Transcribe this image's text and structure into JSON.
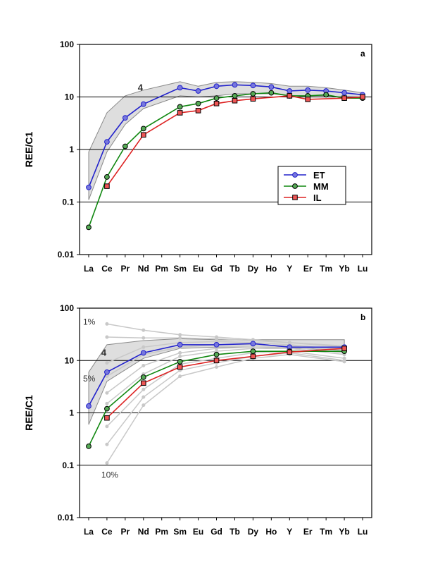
{
  "chart_data": [
    {
      "type": "line",
      "panel_label": "a",
      "ylabel": "REE/C1",
      "yscale": "log",
      "ylim": [
        0.01,
        100
      ],
      "yticks": [
        "0.01",
        "0.1",
        "1",
        "10",
        "100"
      ],
      "categories": [
        "La",
        "Ce",
        "Pr",
        "Nd",
        "Pm",
        "Sm",
        "Eu",
        "Gd",
        "Tb",
        "Dy",
        "Ho",
        "Y",
        "Er",
        "Tm",
        "Yb",
        "Lu"
      ],
      "grid": "horizontal",
      "legend_position": "center-right",
      "series": [
        {
          "name": "ET",
          "color": "#2222cc",
          "marker": "star",
          "values": [
            0.19,
            1.4,
            4,
            7.3,
            null,
            15,
            13,
            16,
            17,
            16.5,
            15.5,
            13,
            13.5,
            13,
            12,
            11
          ]
        },
        {
          "name": "MM",
          "color": "#118811",
          "marker": "circle",
          "values": [
            0.033,
            0.3,
            1.15,
            2.5,
            null,
            6.5,
            7.5,
            9.5,
            10.5,
            11.5,
            12,
            10.5,
            10.5,
            11,
            9.5,
            9.5
          ]
        },
        {
          "name": "IL",
          "color": "#dd2222",
          "marker": "square",
          "values": [
            null,
            0.2,
            null,
            1.9,
            null,
            5,
            5.5,
            7.5,
            8.5,
            9.2,
            null,
            10.5,
            9,
            null,
            9.5,
            10
          ]
        }
      ],
      "band": {
        "upper": [
          0.9,
          5,
          10.5,
          13.5,
          null,
          19.5,
          16,
          19,
          19.5,
          19,
          18,
          16,
          16,
          15,
          13.5,
          12
        ],
        "lower": [
          0.11,
          0.9,
          3,
          6,
          null,
          10.5,
          10,
          10.5,
          11.5,
          11.5,
          11.5,
          10.5,
          10.5,
          10.5,
          10,
          9.5
        ],
        "annotations": [
          {
            "text": "4",
            "x": "Nd",
            "y": 15
          }
        ]
      }
    },
    {
      "type": "line",
      "panel_label": "b",
      "ylabel": "REE/C1",
      "yscale": "log",
      "ylim": [
        0.01,
        100
      ],
      "yticks": [
        "0.01",
        "0.1",
        "1",
        "10",
        "100"
      ],
      "categories": [
        "La",
        "Ce",
        "Pr",
        "Nd",
        "Pm",
        "Sm",
        "Eu",
        "Gd",
        "Tb",
        "Dy",
        "Ho",
        "Y",
        "Er",
        "Tm",
        "Yb",
        "Lu"
      ],
      "grid": "horizontal",
      "series": [
        {
          "name": "ET",
          "color": "#2222cc",
          "marker": "star",
          "values": [
            1.35,
            6,
            null,
            14,
            null,
            20,
            null,
            20,
            null,
            21,
            null,
            18,
            null,
            null,
            18,
            null
          ]
        },
        {
          "name": "MM",
          "color": "#118811",
          "marker": "circle",
          "values": [
            0.23,
            1.2,
            null,
            4.8,
            null,
            9.5,
            null,
            13,
            null,
            15,
            null,
            15,
            null,
            null,
            15,
            null
          ]
        },
        {
          "name": "IL",
          "color": "#dd2222",
          "marker": "square",
          "values": [
            null,
            0.8,
            null,
            3.7,
            null,
            7.5,
            null,
            10,
            null,
            12,
            null,
            14.5,
            null,
            null,
            17,
            null
          ]
        }
      ],
      "band": {
        "upper": [
          6,
          20,
          null,
          24,
          null,
          26,
          null,
          25,
          null,
          25,
          null,
          25,
          null,
          null,
          25,
          null
        ],
        "lower": [
          0.6,
          4,
          null,
          11,
          null,
          17,
          null,
          18,
          null,
          18,
          null,
          17,
          null,
          null,
          16,
          null
        ],
        "annotations": [
          {
            "text": "1%",
            "x": "La",
            "y": 55
          },
          {
            "text": "4",
            "x": "Ce",
            "y": 14
          },
          {
            "text": "5%",
            "x": "La",
            "y": 4.5
          },
          {
            "text": "10%",
            "x": "Ce",
            "y": 0.065
          }
        ]
      },
      "model_curves": [
        [
          null,
          50,
          null,
          38,
          null,
          31,
          null,
          28,
          null,
          25,
          null,
          22,
          null,
          null,
          19,
          null
        ],
        [
          null,
          28,
          null,
          27,
          null,
          27,
          null,
          26,
          null,
          24,
          null,
          22,
          null,
          null,
          18,
          null
        ],
        [
          null,
          9,
          null,
          18,
          null,
          22,
          null,
          23,
          null,
          22,
          null,
          20,
          null,
          null,
          16,
          null
        ],
        [
          null,
          5,
          null,
          13,
          null,
          18,
          null,
          20,
          null,
          20,
          null,
          19,
          null,
          null,
          15,
          null
        ],
        [
          null,
          2.4,
          null,
          8,
          null,
          14,
          null,
          17,
          null,
          18,
          null,
          18,
          null,
          null,
          14,
          null
        ],
        [
          null,
          1.5,
          null,
          5.5,
          null,
          12,
          null,
          15,
          null,
          17,
          null,
          17,
          null,
          null,
          13,
          null
        ],
        [
          null,
          0.55,
          null,
          2.8,
          null,
          8.5,
          null,
          11,
          null,
          14,
          null,
          15,
          null,
          null,
          11,
          null
        ],
        [
          null,
          0.25,
          null,
          2,
          null,
          6.5,
          null,
          9,
          null,
          12,
          null,
          14,
          null,
          null,
          10,
          null
        ],
        [
          null,
          0.11,
          null,
          1.4,
          null,
          5,
          null,
          7.5,
          null,
          11,
          null,
          13,
          null,
          null,
          9.5,
          null
        ]
      ]
    }
  ]
}
